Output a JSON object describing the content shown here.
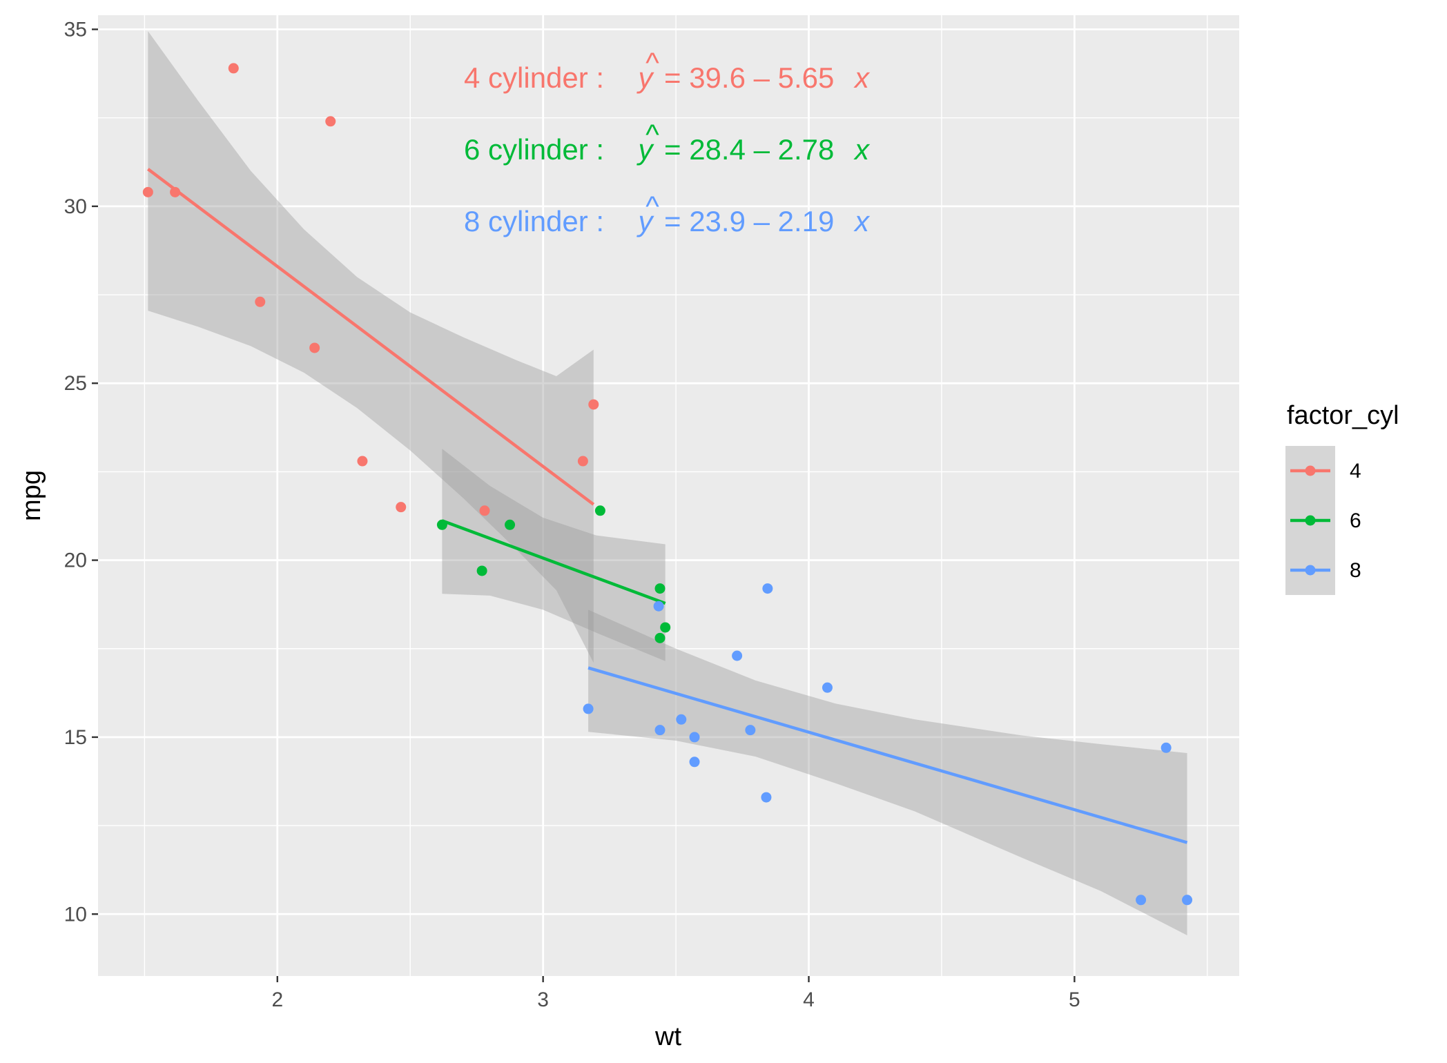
{
  "chart_data": {
    "type": "scatter",
    "title": "",
    "xlabel": "wt",
    "ylabel": "mpg",
    "xlim": [
      1.325,
      5.62
    ],
    "ylim": [
      8.25,
      35.4
    ],
    "x_ticks": [
      2,
      3,
      4,
      5
    ],
    "y_ticks": [
      10,
      15,
      20,
      25,
      30,
      35
    ],
    "x_tick_labels": [
      "2",
      "3",
      "4",
      "5"
    ],
    "y_tick_labels": [
      "10",
      "15",
      "20",
      "25",
      "30",
      "35"
    ],
    "grid": true,
    "legend": {
      "title": "factor_cyl",
      "position": "right",
      "entries": [
        "4",
        "6",
        "8"
      ]
    },
    "series": [
      {
        "name": "4",
        "color": "#F8766D",
        "points": [
          {
            "x": 1.513,
            "y": 30.4
          },
          {
            "x": 1.615,
            "y": 30.4
          },
          {
            "x": 1.835,
            "y": 33.9
          },
          {
            "x": 1.935,
            "y": 27.3
          },
          {
            "x": 2.14,
            "y": 26.0
          },
          {
            "x": 2.2,
            "y": 32.4
          },
          {
            "x": 2.32,
            "y": 22.8
          },
          {
            "x": 2.465,
            "y": 21.5
          },
          {
            "x": 2.78,
            "y": 21.4
          },
          {
            "x": 3.15,
            "y": 22.8
          },
          {
            "x": 3.19,
            "y": 24.4
          }
        ],
        "fit": {
          "intercept": 39.6,
          "slope": -5.65,
          "x_range": [
            1.513,
            3.19
          ]
        },
        "band": [
          {
            "x": 1.513,
            "lo": 27.05,
            "hi": 34.95
          },
          {
            "x": 1.7,
            "lo": 26.6,
            "hi": 33.0
          },
          {
            "x": 1.9,
            "lo": 26.05,
            "hi": 31.0
          },
          {
            "x": 2.1,
            "lo": 25.3,
            "hi": 29.35
          },
          {
            "x": 2.3,
            "lo": 24.3,
            "hi": 28.0
          },
          {
            "x": 2.5,
            "lo": 23.1,
            "hi": 27.0
          },
          {
            "x": 2.7,
            "lo": 21.75,
            "hi": 26.3
          },
          {
            "x": 2.9,
            "lo": 20.3,
            "hi": 25.65
          },
          {
            "x": 3.05,
            "lo": 19.15,
            "hi": 25.2
          },
          {
            "x": 3.19,
            "lo": 17.1,
            "hi": 25.95
          }
        ],
        "equation": {
          "group": "4 cylinder",
          "rhs": "= 39.6 – 5.65",
          "var": "x"
        }
      },
      {
        "name": "6",
        "color": "#00BA38",
        "points": [
          {
            "x": 2.62,
            "y": 21.0
          },
          {
            "x": 2.77,
            "y": 19.7
          },
          {
            "x": 2.875,
            "y": 21.0
          },
          {
            "x": 3.215,
            "y": 21.4
          },
          {
            "x": 3.44,
            "y": 19.2
          },
          {
            "x": 3.44,
            "y": 17.8
          },
          {
            "x": 3.46,
            "y": 18.1
          }
        ],
        "fit": {
          "intercept": 28.4,
          "slope": -2.78,
          "x_range": [
            2.62,
            3.46
          ]
        },
        "band": [
          {
            "x": 2.62,
            "lo": 19.05,
            "hi": 23.15
          },
          {
            "x": 2.8,
            "lo": 19.0,
            "hi": 22.1
          },
          {
            "x": 3.0,
            "lo": 18.6,
            "hi": 21.2
          },
          {
            "x": 3.2,
            "lo": 17.95,
            "hi": 20.7
          },
          {
            "x": 3.46,
            "lo": 17.15,
            "hi": 20.45
          }
        ],
        "equation": {
          "group": "6 cylinder",
          "rhs": "= 28.4 – 2.78",
          "var": "x"
        }
      },
      {
        "name": "8",
        "color": "#619CFF",
        "points": [
          {
            "x": 3.17,
            "y": 15.8
          },
          {
            "x": 3.435,
            "y": 18.7
          },
          {
            "x": 3.44,
            "y": 15.2
          },
          {
            "x": 3.52,
            "y": 15.5
          },
          {
            "x": 3.57,
            "y": 15.0
          },
          {
            "x": 3.57,
            "y": 14.3
          },
          {
            "x": 3.73,
            "y": 17.3
          },
          {
            "x": 3.78,
            "y": 15.2
          },
          {
            "x": 3.84,
            "y": 13.3
          },
          {
            "x": 3.845,
            "y": 19.2
          },
          {
            "x": 4.07,
            "y": 16.4
          },
          {
            "x": 5.25,
            "y": 10.4
          },
          {
            "x": 5.345,
            "y": 14.7
          },
          {
            "x": 5.424,
            "y": 10.4
          }
        ],
        "fit": {
          "intercept": 23.9,
          "slope": -2.19,
          "x_range": [
            3.17,
            5.424
          ]
        },
        "band": [
          {
            "x": 3.17,
            "lo": 15.15,
            "hi": 18.6
          },
          {
            "x": 3.5,
            "lo": 14.9,
            "hi": 17.5
          },
          {
            "x": 3.8,
            "lo": 14.45,
            "hi": 16.6
          },
          {
            "x": 4.1,
            "lo": 13.7,
            "hi": 15.95
          },
          {
            "x": 4.4,
            "lo": 12.9,
            "hi": 15.5
          },
          {
            "x": 4.8,
            "lo": 11.6,
            "hi": 15.05
          },
          {
            "x": 5.1,
            "lo": 10.65,
            "hi": 14.8
          },
          {
            "x": 5.424,
            "lo": 9.4,
            "hi": 14.55
          }
        ],
        "equation": {
          "group": "8 cylinder",
          "rhs": "= 23.9 – 2.19",
          "var": "x"
        }
      }
    ]
  },
  "colors": {
    "panel_bg": "#EBEBEB",
    "grid": "#FFFFFF",
    "band": "#999999",
    "tick": "#333333"
  }
}
